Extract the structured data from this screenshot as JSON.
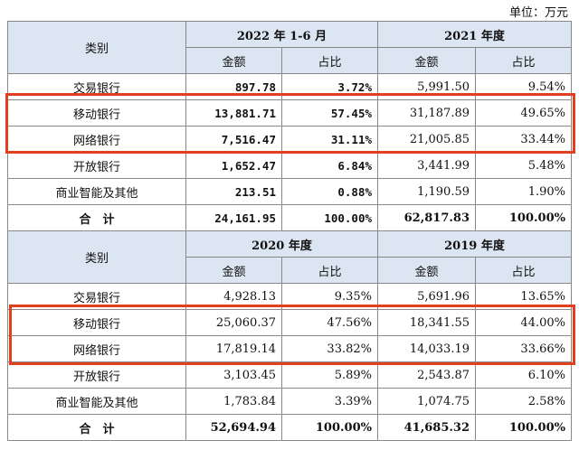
{
  "unit_label": "单位：万元",
  "header_label_category": "类别",
  "header_label_amount": "金额",
  "header_label_ratio": "占比",
  "section1": {
    "period_a": "2022 年 1-6 月",
    "period_b": "2021 年度",
    "rows": [
      {
        "name": "交易银行",
        "a_amount": "897.78",
        "a_ratio": "3.72%",
        "b_amount": "5,991.50",
        "b_ratio": "9.54%"
      },
      {
        "name": "移动银行",
        "a_amount": "13,881.71",
        "a_ratio": "57.45%",
        "b_amount": "31,187.89",
        "b_ratio": "49.65%"
      },
      {
        "name": "网络银行",
        "a_amount": "7,516.47",
        "a_ratio": "31.11%",
        "b_amount": "21,005.85",
        "b_ratio": "33.44%"
      },
      {
        "name": "开放银行",
        "a_amount": "1,652.47",
        "a_ratio": "6.84%",
        "b_amount": "3,441.99",
        "b_ratio": "5.48%"
      },
      {
        "name": "商业智能及其他",
        "a_amount": "213.51",
        "a_ratio": "0.88%",
        "b_amount": "1,190.59",
        "b_ratio": "1.90%"
      }
    ],
    "total": {
      "name": "合　计",
      "a_amount": "24,161.95",
      "a_ratio": "100.00%",
      "b_amount": "62,817.83",
      "b_ratio": "100.00%"
    }
  },
  "section2": {
    "period_a": "2020 年度",
    "period_b": "2019 年度",
    "rows": [
      {
        "name": "交易银行",
        "a_amount": "4,928.13",
        "a_ratio": "9.35%",
        "b_amount": "5,691.96",
        "b_ratio": "13.65%"
      },
      {
        "name": "移动银行",
        "a_amount": "25,060.37",
        "a_ratio": "47.56%",
        "b_amount": "18,341.55",
        "b_ratio": "44.00%"
      },
      {
        "name": "网络银行",
        "a_amount": "17,819.14",
        "a_ratio": "33.82%",
        "b_amount": "14,033.19",
        "b_ratio": "33.66%"
      },
      {
        "name": "开放银行",
        "a_amount": "3,103.45",
        "a_ratio": "5.89%",
        "b_amount": "2,543.87",
        "b_ratio": "6.10%"
      },
      {
        "name": "商业智能及其他",
        "a_amount": "1,783.84",
        "a_ratio": "3.39%",
        "b_amount": "1,074.75",
        "b_ratio": "2.58%"
      }
    ],
    "total": {
      "name": "合　计",
      "a_amount": "52,694.94",
      "a_ratio": "100.00%",
      "b_amount": "41,685.32",
      "b_ratio": "100.00%"
    }
  },
  "highlight_color": "#e0401f",
  "header_bg_color": "#dce6f2"
}
